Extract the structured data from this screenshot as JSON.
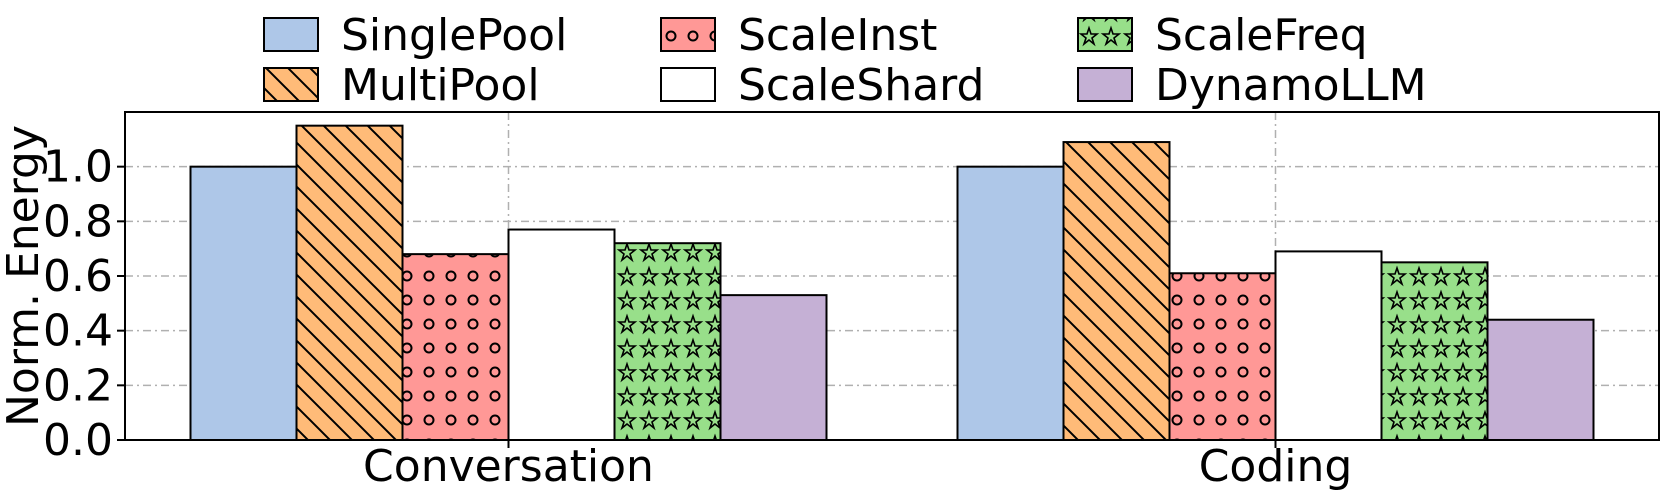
{
  "chart_data": {
    "type": "bar",
    "title": "",
    "xlabel": "",
    "ylabel": "Norm. Energy",
    "ylim": [
      0,
      1.2
    ],
    "yticks": [
      "0.0",
      "0.2",
      "0.4",
      "0.6",
      "0.8",
      "1.0"
    ],
    "categories": [
      "Conversation",
      "Coding"
    ],
    "grid": true,
    "legend_position": "top",
    "series": [
      {
        "name": "SinglePool",
        "values": [
          1.0,
          1.0
        ],
        "color": "#aec7e8",
        "pattern": "none"
      },
      {
        "name": "MultiPool",
        "values": [
          1.15,
          1.09
        ],
        "color": "#ffbb78",
        "pattern": "diagonal"
      },
      {
        "name": "ScaleInst",
        "values": [
          0.68,
          0.61
        ],
        "color": "#ff9896",
        "pattern": "circles"
      },
      {
        "name": "ScaleShard",
        "values": [
          0.77,
          0.69
        ],
        "color": "#ffffff",
        "pattern": "none"
      },
      {
        "name": "ScaleFreq",
        "values": [
          0.72,
          0.65
        ],
        "color": "#98df8a",
        "pattern": "stars"
      },
      {
        "name": "DynamoLLM",
        "values": [
          0.53,
          0.44
        ],
        "color": "#c5b0d5",
        "pattern": "none"
      }
    ]
  }
}
